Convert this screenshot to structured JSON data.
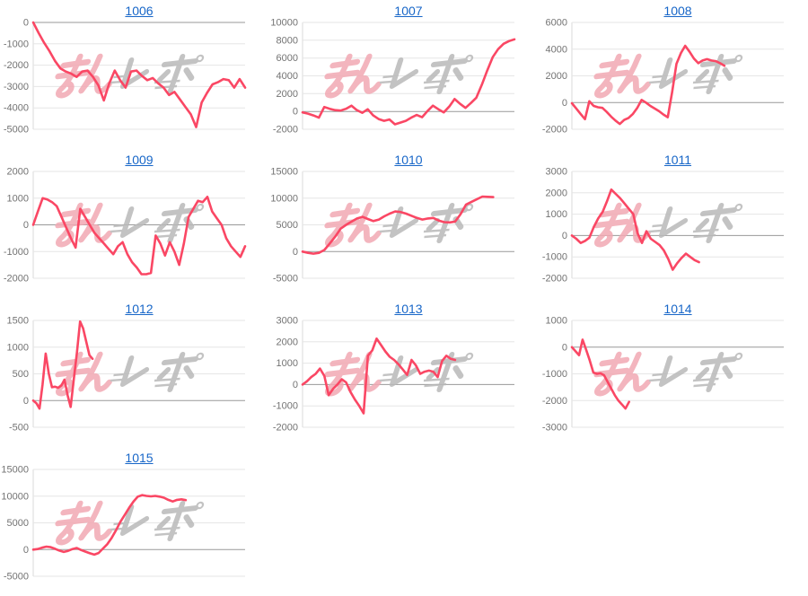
{
  "colors": {
    "line": "#fa4764",
    "grid": "#e6e6e6",
    "zero_line": "#999999",
    "axis": "#d8d8d8",
    "tick_text": "#737373",
    "link": "#1766c8",
    "background": "#ffffff"
  },
  "watermark": {
    "text": "みんレポ",
    "pink_part": "みん",
    "gray_part": "レポ",
    "pink_color": "#f2a9b3",
    "gray_color": "#b9b9b9"
  },
  "chart_data": [
    {
      "type": "line",
      "title": "1006",
      "xlabel": "",
      "ylabel": "",
      "ylim": [
        -5000,
        0
      ],
      "yticks": [
        0,
        -1000,
        -2000,
        -3000,
        -4000,
        -5000
      ],
      "grid": true,
      "legend": "none",
      "span": 1.0,
      "values": [
        0,
        -500,
        -950,
        -1350,
        -1800,
        -2150,
        -2300,
        -2400,
        -2550,
        -2300,
        -2250,
        -2550,
        -2950,
        -3650,
        -2850,
        -2250,
        -2700,
        -3050,
        -2300,
        -2250,
        -2500,
        -2700,
        -2600,
        -2850,
        -3050,
        -3400,
        -3250,
        -3600,
        -3950,
        -4300,
        -4900,
        -3750,
        -3300,
        -2900,
        -2800,
        -2650,
        -2700,
        -3050,
        -2650,
        -3050
      ]
    },
    {
      "type": "line",
      "title": "1007",
      "xlabel": "",
      "ylabel": "",
      "ylim": [
        -2000,
        10000
      ],
      "yticks": [
        10000,
        8000,
        6000,
        4000,
        2000,
        0,
        -2000
      ],
      "grid": true,
      "legend": "none",
      "span": 1.0,
      "values": [
        -100,
        -250,
        -450,
        -700,
        500,
        300,
        150,
        100,
        300,
        650,
        150,
        -150,
        250,
        -450,
        -850,
        -1050,
        -900,
        -1450,
        -1250,
        -1050,
        -700,
        -400,
        -650,
        50,
        650,
        250,
        -100,
        550,
        1400,
        850,
        400,
        950,
        1550,
        3000,
        4600,
        6100,
        7000,
        7600,
        7900,
        8100
      ]
    },
    {
      "type": "line",
      "title": "1008",
      "xlabel": "",
      "ylabel": "",
      "ylim": [
        -2000,
        6000
      ],
      "yticks": [
        6000,
        4000,
        2000,
        0,
        -2000
      ],
      "grid": true,
      "legend": "none",
      "span": 0.72,
      "values": [
        -50,
        -450,
        -850,
        -1250,
        100,
        -250,
        -350,
        -400,
        -700,
        -1050,
        -1350,
        -1600,
        -1300,
        -1150,
        -850,
        -400,
        200,
        0,
        -250,
        -450,
        -650,
        -900,
        -1100,
        800,
        2900,
        3700,
        4250,
        3800,
        3300,
        2950,
        3150,
        3250,
        3150,
        3100,
        2950,
        2750
      ]
    },
    {
      "type": "line",
      "title": "1009",
      "xlabel": "",
      "ylabel": "",
      "ylim": [
        -2000,
        2000
      ],
      "yticks": [
        2000,
        1000,
        0,
        -1000,
        -2000
      ],
      "grid": true,
      "legend": "none",
      "span": 1.0,
      "values": [
        0,
        500,
        1000,
        950,
        850,
        700,
        300,
        -100,
        -500,
        -850,
        600,
        300,
        0,
        -300,
        -500,
        -700,
        -900,
        -1100,
        -800,
        -650,
        -1100,
        -1400,
        -1600,
        -1850,
        -1850,
        -1800,
        -400,
        -700,
        -1150,
        -650,
        -1000,
        -1500,
        -700,
        300,
        600,
        900,
        850,
        1050,
        500,
        250,
        0,
        -500,
        -800,
        -1000,
        -1200,
        -800
      ]
    },
    {
      "type": "line",
      "title": "1010",
      "xlabel": "",
      "ylabel": "",
      "ylim": [
        -5000,
        15000
      ],
      "yticks": [
        15000,
        10000,
        5000,
        0,
        -5000
      ],
      "grid": true,
      "legend": "none",
      "span": 0.9,
      "values": [
        0,
        -250,
        -400,
        -250,
        300,
        1500,
        2800,
        4300,
        5000,
        5600,
        6200,
        6500,
        6100,
        5700,
        6000,
        6600,
        7100,
        7500,
        7400,
        7100,
        6700,
        6300,
        6000,
        6200,
        6300,
        5800,
        5500,
        5450,
        5600,
        7000,
        8800,
        9300,
        9800,
        10300,
        10250,
        10200
      ]
    },
    {
      "type": "line",
      "title": "1011",
      "xlabel": "",
      "ylabel": "",
      "ylim": [
        -2000,
        3000
      ],
      "yticks": [
        3000,
        2000,
        1000,
        0,
        -1000,
        -2000
      ],
      "grid": true,
      "legend": "none",
      "span": 0.6,
      "values": [
        0,
        -150,
        -350,
        -250,
        -100,
        400,
        800,
        1100,
        1600,
        2150,
        1950,
        1750,
        1500,
        1250,
        1000,
        100,
        -350,
        200,
        -150,
        -300,
        -450,
        -700,
        -1100,
        -1600,
        -1300,
        -1050,
        -850,
        -1000,
        -1150,
        -1250
      ]
    },
    {
      "type": "line",
      "title": "1012",
      "xlabel": "",
      "ylabel": "",
      "ylim": [
        -500,
        1500
      ],
      "yticks": [
        1500,
        1000,
        500,
        0,
        -500
      ],
      "grid": true,
      "legend": "none",
      "span": 0.28,
      "values": [
        0,
        -50,
        -150,
        300,
        880,
        500,
        250,
        260,
        240,
        280,
        390,
        100,
        -120,
        400,
        900,
        1480,
        1350,
        1100,
        850,
        780
      ]
    },
    {
      "type": "line",
      "title": "1013",
      "xlabel": "",
      "ylabel": "",
      "ylim": [
        -2000,
        3000
      ],
      "yticks": [
        3000,
        2000,
        1000,
        0,
        -1000,
        -2000
      ],
      "grid": true,
      "legend": "none",
      "span": 0.72,
      "values": [
        0,
        150,
        350,
        500,
        750,
        400,
        -500,
        -200,
        0,
        250,
        100,
        -350,
        -700,
        -1000,
        -1350,
        1350,
        1600,
        2150,
        1850,
        1550,
        1300,
        1150,
        950,
        700,
        450,
        1150,
        900,
        500,
        600,
        650,
        600,
        350,
        1100,
        1350,
        1200,
        1150
      ]
    },
    {
      "type": "line",
      "title": "1014",
      "xlabel": "",
      "ylabel": "",
      "ylim": [
        -3000,
        1000
      ],
      "yticks": [
        1000,
        0,
        -1000,
        -2000,
        -3000
      ],
      "grid": true,
      "legend": "none",
      "span": 0.27,
      "values": [
        0,
        -150,
        -300,
        280,
        -100,
        -500,
        -950,
        -1000,
        -980,
        -1050,
        -1300,
        -1550,
        -1800,
        -2000,
        -2150,
        -2300,
        -2050
      ]
    },
    {
      "type": "line",
      "title": "1015",
      "xlabel": "",
      "ylabel": "",
      "ylim": [
        -5000,
        15000
      ],
      "yticks": [
        15000,
        10000,
        5000,
        0,
        -5000
      ],
      "grid": true,
      "legend": "none",
      "span": 0.72,
      "values": [
        0,
        100,
        350,
        550,
        450,
        150,
        -200,
        -450,
        -250,
        100,
        300,
        -100,
        -400,
        -700,
        -950,
        -650,
        200,
        1000,
        2200,
        3600,
        5200,
        6500,
        7800,
        9000,
        9900,
        10200,
        10050,
        9950,
        10050,
        9900,
        9700,
        9300,
        9000,
        9300,
        9400,
        9250
      ]
    }
  ]
}
